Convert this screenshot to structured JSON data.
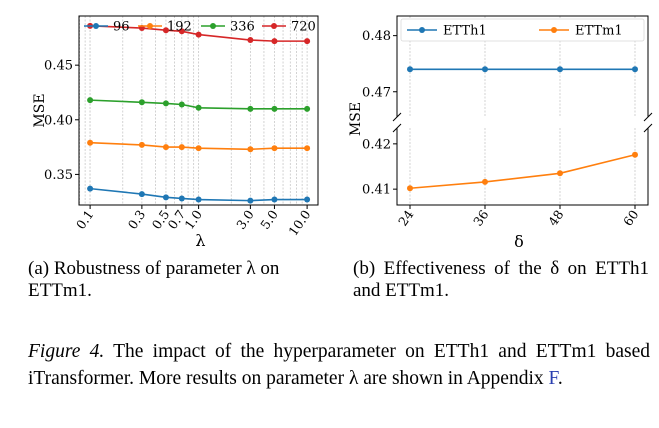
{
  "chart_data": [
    {
      "type": "line",
      "xscale": "log",
      "x": [
        0.1,
        0.3,
        0.5,
        0.7,
        1.0,
        3.0,
        5.0,
        10.0
      ],
      "xtick_labels": [
        "0.1",
        "0.3",
        "0.5",
        "0.7",
        "1.0",
        "3.0",
        "5.0",
        "10.0"
      ],
      "xlabel": "λ",
      "ylabel": "MSE",
      "ylim": [
        0.322,
        0.495
      ],
      "yticks": [
        0.35,
        0.4,
        0.45
      ],
      "ytick_labels": [
        "0.35",
        "0.40",
        "0.45"
      ],
      "grid": "x-major-and-minor",
      "legend": "top",
      "series": [
        {
          "name": "96",
          "color": "#1f77b4",
          "values": [
            0.337,
            0.332,
            0.329,
            0.328,
            0.327,
            0.326,
            0.327,
            0.327
          ]
        },
        {
          "name": "192",
          "color": "#ff7f0e",
          "values": [
            0.379,
            0.377,
            0.375,
            0.375,
            0.374,
            0.373,
            0.374,
            0.374
          ]
        },
        {
          "name": "336",
          "color": "#2ca02c",
          "values": [
            0.418,
            0.416,
            0.415,
            0.414,
            0.411,
            0.41,
            0.41,
            0.41
          ]
        },
        {
          "name": "720",
          "color": "#d62728",
          "values": [
            0.486,
            0.484,
            0.482,
            0.481,
            0.478,
            0.473,
            0.472,
            0.472
          ]
        }
      ]
    },
    {
      "type": "line",
      "broken_axis": true,
      "x": [
        24,
        36,
        48,
        60
      ],
      "xtick_labels": [
        "24",
        "36",
        "48",
        "60"
      ],
      "xlabel": "δ",
      "ylabel": "MSE",
      "upper_ylim": [
        0.4655,
        0.4835
      ],
      "upper_yticks": [
        0.47,
        0.48
      ],
      "upper_ytick_labels": [
        "0.47",
        "0.48"
      ],
      "lower_ylim": [
        0.4065,
        0.4235
      ],
      "lower_yticks": [
        0.41,
        0.42
      ],
      "lower_ytick_labels": [
        "0.41",
        "0.42"
      ],
      "legend": "top",
      "series": [
        {
          "name": "ETTh1",
          "color": "#1f77b4",
          "values": [
            0.474,
            0.474,
            0.474,
            0.474
          ]
        },
        {
          "name": "ETTm1",
          "color": "#ff7f0e",
          "values": [
            0.4102,
            0.4116,
            0.4135,
            0.4176
          ]
        }
      ]
    }
  ],
  "captions": {
    "sub_a": "(a) Robustness of parameter λ on ETTm1.",
    "sub_b": "(b) Effectiveness of the δ on ETTh1 and ETTm1.",
    "figure_label": "Figure 4.",
    "figure_text": " The impact of the hyperparameter on ETTh1 and ETTm1 based iTransformer. More results on parameter λ are shown in Appendix ",
    "figure_ref": "F",
    "figure_end": "."
  }
}
